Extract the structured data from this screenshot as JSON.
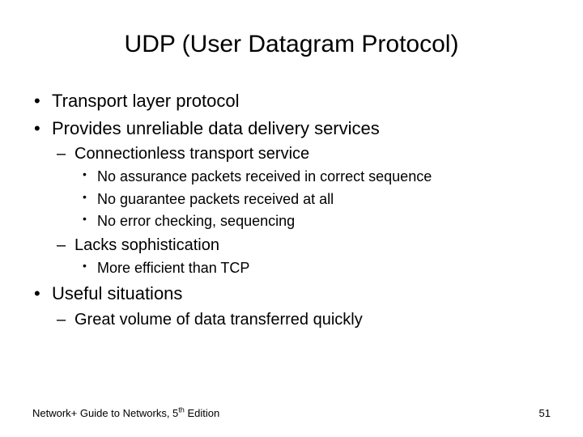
{
  "title": "UDP (User Datagram Protocol)",
  "bullets": {
    "b1": "Transport layer protocol",
    "b2": "Provides unreliable data delivery services",
    "b2_1": "Connectionless transport service",
    "b2_1_1": "No assurance packets received in correct sequence",
    "b2_1_2": "No guarantee packets received at all",
    "b2_1_3": "No error checking, sequencing",
    "b2_2": "Lacks sophistication",
    "b2_2_1": "More efficient than TCP",
    "b3": "Useful situations",
    "b3_1": "Great volume of data transferred quickly"
  },
  "footer": {
    "left_prefix": "Network+ Guide to Networks, 5",
    "left_sup": "th",
    "left_suffix": " Edition",
    "page": "51"
  },
  "style": {
    "background": "#ffffff",
    "text_color": "#000000",
    "title_fontsize": 30,
    "lvl1_fontsize": 22,
    "lvl2_fontsize": 20,
    "lvl3_fontsize": 18,
    "footer_fontsize": 13,
    "font_family": "Arial"
  }
}
